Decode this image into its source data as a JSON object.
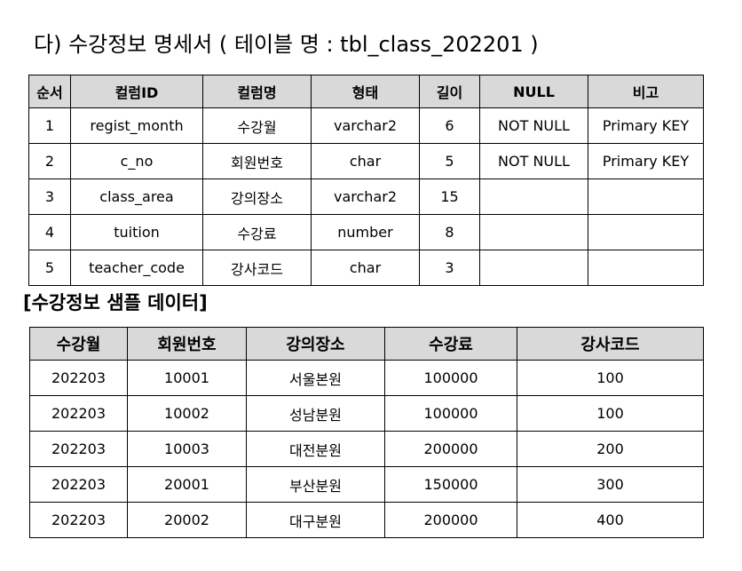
{
  "title": "다) 수강정보 명세서 ( 테이블 명 : tbl_class_202201 )",
  "spec_table": {
    "headers": [
      "순서",
      "컬럼ID",
      "컬럼명",
      "형태",
      "길이",
      "NULL",
      "비고"
    ],
    "rows": [
      [
        "1",
        "regist_month",
        "수강월",
        "varchar2",
        "6",
        "NOT NULL",
        "Primary KEY"
      ],
      [
        "2",
        "c_no",
        "회원번호",
        "char",
        "5",
        "NOT NULL",
        "Primary KEY"
      ],
      [
        "3",
        "class_area",
        "강의장소",
        "varchar2",
        "15",
        "",
        ""
      ],
      [
        "4",
        "tuition",
        "수강료",
        "number",
        "8",
        "",
        ""
      ],
      [
        "5",
        "teacher_code",
        "강사코드",
        "char",
        "3",
        "",
        ""
      ]
    ]
  },
  "sample_title": "[수강정보 샘플 데이터]",
  "sample_table": {
    "headers": [
      "수강월",
      "회원번호",
      "강의장소",
      "수강료",
      "강사코드"
    ],
    "rows": [
      [
        "202203",
        "10001",
        "서울본원",
        "100000",
        "100"
      ],
      [
        "202203",
        "10002",
        "성남분원",
        "100000",
        "100"
      ],
      [
        "202203",
        "10003",
        "대전분원",
        "200000",
        "200"
      ],
      [
        "202203",
        "20001",
        "부산분원",
        "150000",
        "300"
      ],
      [
        "202203",
        "20002",
        "대구분원",
        "200000",
        "400"
      ]
    ]
  }
}
